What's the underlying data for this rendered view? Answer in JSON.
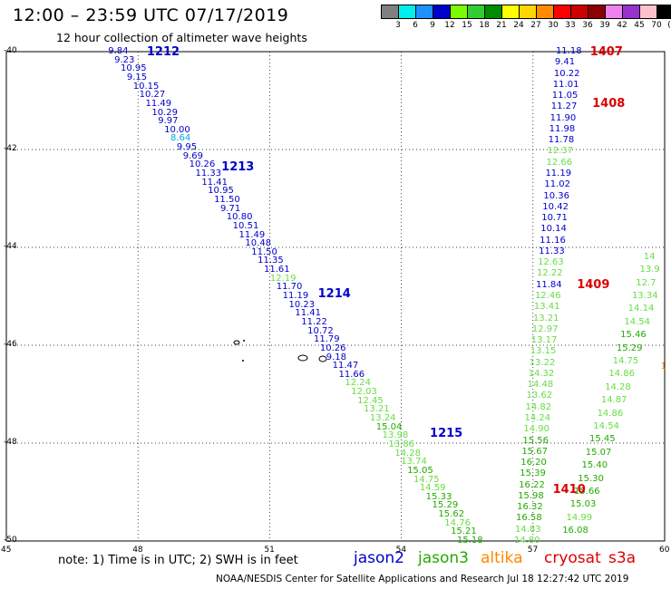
{
  "title": "12:00 – 23:59 UTC 07/17/2019",
  "subtitle": "12 hour collection of altimeter wave heights",
  "legend": {
    "unit": "(ft)",
    "swatches": [
      {
        "color": "#808080",
        "label": "3"
      },
      {
        "color": "#00eeee",
        "label": "6"
      },
      {
        "color": "#1e90ff",
        "label": "9"
      },
      {
        "color": "#0000cd",
        "label": "12"
      },
      {
        "color": "#7cfc00",
        "label": "15"
      },
      {
        "color": "#32cd32",
        "label": "18"
      },
      {
        "color": "#008b00",
        "label": "21"
      },
      {
        "color": "#ffff00",
        "label": "24"
      },
      {
        "color": "#ffd700",
        "label": "27"
      },
      {
        "color": "#ff8c00",
        "label": "30"
      },
      {
        "color": "#ff0000",
        "label": "33"
      },
      {
        "color": "#cd0000",
        "label": "36"
      },
      {
        "color": "#8b0000",
        "label": "39"
      },
      {
        "color": "#ee82ee",
        "label": "42"
      },
      {
        "color": "#9932cc",
        "label": "45"
      },
      {
        "color": "#ffc0cb",
        "label": "70"
      },
      {
        "color": "#000000",
        "label": ""
      }
    ]
  },
  "colors": {
    "blue": "#0000cc",
    "cyan": "#00aadd",
    "lightgreen": "#66dd44",
    "green": "#22aa00",
    "red": "#dd0000",
    "orange": "#ff8800"
  },
  "lat_labels": [
    "-40",
    "-42",
    "-44",
    "-46",
    "-48",
    "-50"
  ],
  "lon_labels": [
    "45",
    "48",
    "51",
    "54",
    "57",
    "60"
  ],
  "note": "note: 1) Time is in UTC; 2) SWH is in feet",
  "satellites": [
    {
      "name": "jason2",
      "color": "#0000cc"
    },
    {
      "name": "jason3",
      "color": "#22aa00"
    },
    {
      "name": "altika",
      "color": "#ff8800"
    },
    {
      "name": "cryosat",
      "color": "#dd0000"
    },
    {
      "name": "s3a",
      "color": "#dd0000"
    }
  ],
  "footer": "NOAA/NESDIS Center for Satellite Applications and Research   Jul 18 12:27:42 UTC 2019",
  "pass_labels": [
    {
      "text": "1212",
      "lon": 48.2,
      "lat": -40.0,
      "color": "red_or_blue",
      "c": "blue"
    },
    {
      "text": "1213",
      "lon": 49.9,
      "lat": -42.35,
      "c": "blue"
    },
    {
      "text": "1214",
      "lon": 52.1,
      "lat": -44.95,
      "c": "blue"
    },
    {
      "text": "1215",
      "lon": 54.65,
      "lat": -47.8,
      "c": "blue"
    },
    {
      "text": "1407",
      "lon": 58.3,
      "lat": -40.0,
      "c": "red"
    },
    {
      "text": "1408",
      "lon": 58.35,
      "lat": -41.05,
      "c": "red"
    },
    {
      "text": "1409",
      "lon": 58.0,
      "lat": -44.75,
      "c": "red"
    },
    {
      "text": "1410",
      "lon": 57.45,
      "lat": -48.95,
      "c": "red"
    }
  ],
  "track_a": {
    "start": [
      47.65,
      -40.0
    ],
    "end": [
      55.6,
      -50.0
    ],
    "values": [
      {
        "v": "9.84",
        "c": "blue"
      },
      {
        "v": "9.23",
        "c": "blue"
      },
      {
        "v": "10.95",
        "c": "blue"
      },
      {
        "v": "9.15",
        "c": "blue"
      },
      {
        "v": "10.15",
        "c": "blue"
      },
      {
        "v": "10.27",
        "c": "blue"
      },
      {
        "v": "11.49",
        "c": "blue"
      },
      {
        "v": "10.29",
        "c": "blue"
      },
      {
        "v": "9.97",
        "c": "blue"
      },
      {
        "v": "10.00",
        "c": "blue"
      },
      {
        "v": "8.64",
        "c": "cyan"
      },
      {
        "v": "9.95",
        "c": "blue"
      },
      {
        "v": "9.69",
        "c": "blue"
      },
      {
        "v": "10.26",
        "c": "blue"
      },
      {
        "v": "11.33",
        "c": "blue"
      },
      {
        "v": "11.41",
        "c": "blue"
      },
      {
        "v": "10.95",
        "c": "blue"
      },
      {
        "v": "11.50",
        "c": "blue"
      },
      {
        "v": "9.71",
        "c": "blue"
      },
      {
        "v": "10.80",
        "c": "blue"
      },
      {
        "v": "10.51",
        "c": "blue"
      },
      {
        "v": "11.49",
        "c": "blue"
      },
      {
        "v": "10.48",
        "c": "blue"
      },
      {
        "v": "11.50",
        "c": "blue"
      },
      {
        "v": "11.35",
        "c": "blue"
      },
      {
        "v": "11.61",
        "c": "blue"
      },
      {
        "v": "12.19",
        "c": "lightgreen"
      },
      {
        "v": "11.70",
        "c": "blue"
      },
      {
        "v": "11.19",
        "c": "blue"
      },
      {
        "v": "10.23",
        "c": "blue"
      },
      {
        "v": "11.41",
        "c": "blue"
      },
      {
        "v": "11.22",
        "c": "blue"
      },
      {
        "v": "10.72",
        "c": "blue"
      },
      {
        "v": "11.79",
        "c": "blue"
      },
      {
        "v": "10.26",
        "c": "blue"
      },
      {
        "v": "9.18",
        "c": "blue"
      },
      {
        "v": "11.47",
        "c": "blue"
      },
      {
        "v": "11.66",
        "c": "blue"
      },
      {
        "v": "12.24",
        "c": "lightgreen"
      },
      {
        "v": "12.03",
        "c": "lightgreen"
      },
      {
        "v": "12.45",
        "c": "lightgreen"
      },
      {
        "v": "13.21",
        "c": "lightgreen"
      },
      {
        "v": "13.24",
        "c": "lightgreen"
      },
      {
        "v": "15.04",
        "c": "green"
      },
      {
        "v": "13.98",
        "c": "lightgreen"
      },
      {
        "v": "13.86",
        "c": "lightgreen"
      },
      {
        "v": "14.28",
        "c": "lightgreen"
      },
      {
        "v": "13.74",
        "c": "lightgreen"
      },
      {
        "v": "15.05",
        "c": "green"
      },
      {
        "v": "14.75",
        "c": "lightgreen"
      },
      {
        "v": "14.59",
        "c": "lightgreen"
      },
      {
        "v": "15.33",
        "c": "green"
      },
      {
        "v": "15.29",
        "c": "green"
      },
      {
        "v": "15.62",
        "c": "green"
      },
      {
        "v": "14.76",
        "c": "lightgreen"
      },
      {
        "v": "15.21",
        "c": "green"
      },
      {
        "v": "15.18",
        "c": "green"
      }
    ]
  },
  "track_b": {
    "start": [
      57.85,
      -40.0
    ],
    "end": [
      56.9,
      -50.0
    ],
    "values": [
      {
        "v": "11.18",
        "c": "blue"
      },
      {
        "v": "9.41",
        "c": "blue"
      },
      {
        "v": "10.22",
        "c": "blue"
      },
      {
        "v": "11.01",
        "c": "blue"
      },
      {
        "v": "11.05",
        "c": "blue"
      },
      {
        "v": "11.27",
        "c": "blue"
      },
      {
        "v": "11.90",
        "c": "blue"
      },
      {
        "v": "11.98",
        "c": "blue"
      },
      {
        "v": "11.78",
        "c": "blue"
      },
      {
        "v": "12.37",
        "c": "lightgreen"
      },
      {
        "v": "12.66",
        "c": "lightgreen"
      },
      {
        "v": "11.19",
        "c": "blue"
      },
      {
        "v": "11.02",
        "c": "blue"
      },
      {
        "v": "10.36",
        "c": "blue"
      },
      {
        "v": "10.42",
        "c": "blue"
      },
      {
        "v": "10.71",
        "c": "blue"
      },
      {
        "v": "10.14",
        "c": "blue"
      },
      {
        "v": "11.16",
        "c": "blue"
      },
      {
        "v": "11.33",
        "c": "blue"
      },
      {
        "v": "12.63",
        "c": "lightgreen"
      },
      {
        "v": "12.22",
        "c": "lightgreen"
      },
      {
        "v": "11.84",
        "c": "blue"
      },
      {
        "v": "12.46",
        "c": "lightgreen"
      },
      {
        "v": "13.41",
        "c": "lightgreen"
      },
      {
        "v": "13.21",
        "c": "lightgreen"
      },
      {
        "v": "12.97",
        "c": "lightgreen"
      },
      {
        "v": "13.17",
        "c": "lightgreen"
      },
      {
        "v": "13.15",
        "c": "lightgreen"
      },
      {
        "v": "13.22",
        "c": "lightgreen"
      },
      {
        "v": "14.32",
        "c": "lightgreen"
      },
      {
        "v": "14.48",
        "c": "lightgreen"
      },
      {
        "v": "13.62",
        "c": "lightgreen"
      },
      {
        "v": "14.82",
        "c": "lightgreen"
      },
      {
        "v": "14.24",
        "c": "lightgreen"
      },
      {
        "v": "14.90",
        "c": "lightgreen"
      },
      {
        "v": "15.56",
        "c": "green"
      },
      {
        "v": "15.67",
        "c": "green"
      },
      {
        "v": "16.20",
        "c": "green"
      },
      {
        "v": "15.39",
        "c": "green"
      },
      {
        "v": "16.22",
        "c": "green"
      },
      {
        "v": "15.98",
        "c": "green"
      },
      {
        "v": "16.32",
        "c": "green"
      },
      {
        "v": "16.58",
        "c": "green"
      },
      {
        "v": "14.83",
        "c": "lightgreen"
      },
      {
        "v": "14.80",
        "c": "lightgreen"
      }
    ]
  },
  "track_c": {
    "start": [
      59.85,
      -44.2
    ],
    "end": [
      58.0,
      -49.8
    ],
    "values": [
      {
        "v": "14",
        "c": "lightgreen"
      },
      {
        "v": "13.9",
        "c": "lightgreen"
      },
      {
        "v": "12.7",
        "c": "lightgreen"
      },
      {
        "v": "13.34",
        "c": "lightgreen"
      },
      {
        "v": "14.14",
        "c": "lightgreen"
      },
      {
        "v": "14.54",
        "c": "lightgreen"
      },
      {
        "v": "15.46",
        "c": "green"
      },
      {
        "v": "15.29",
        "c": "green"
      },
      {
        "v": "14.75",
        "c": "lightgreen"
      },
      {
        "v": "14.86",
        "c": "lightgreen"
      },
      {
        "v": "14.28",
        "c": "lightgreen"
      },
      {
        "v": "14.87",
        "c": "lightgreen"
      },
      {
        "v": "14.86",
        "c": "lightgreen"
      },
      {
        "v": "14.54",
        "c": "lightgreen"
      },
      {
        "v": "15.45",
        "c": "green"
      },
      {
        "v": "15.07",
        "c": "green"
      },
      {
        "v": "15.40",
        "c": "green"
      },
      {
        "v": "15.30",
        "c": "green"
      },
      {
        "v": "15.66",
        "c": "green"
      },
      {
        "v": "15.03",
        "c": "green"
      },
      {
        "v": "14.99",
        "c": "lightgreen"
      },
      {
        "v": "16.08",
        "c": "green"
      }
    ]
  },
  "extra_values": [
    {
      "v": "1",
      "lon": 59.95,
      "lat": -46.45,
      "c": "orange"
    }
  ]
}
